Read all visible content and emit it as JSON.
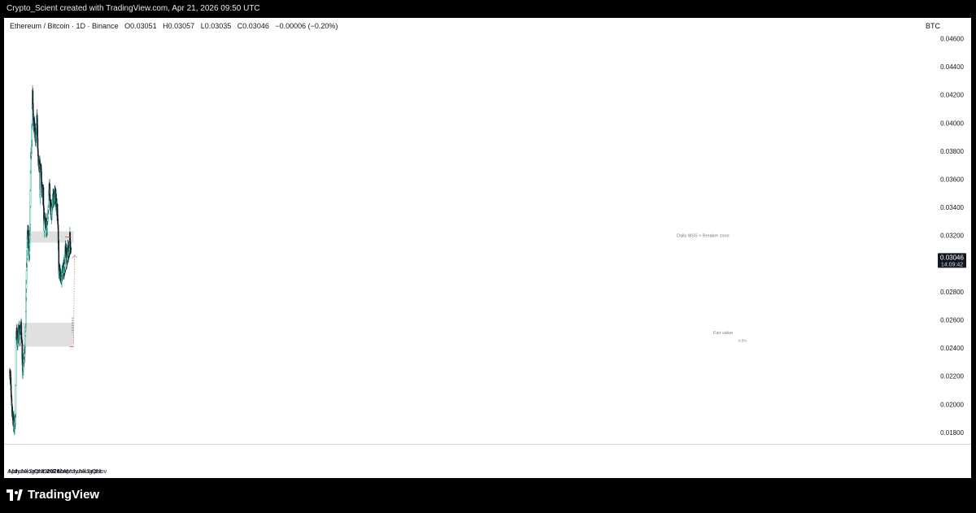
{
  "header": {
    "credit": "Crypto_Scient created with TradingView.com, Apr 21, 2026 09:50 UTC"
  },
  "legend": {
    "symbol": "Ethereum / Bitcoin · 1D · Binance",
    "open_label": "O",
    "open": "0.03051",
    "high_label": "H",
    "high": "0.03057",
    "low_label": "L",
    "low": "0.03035",
    "close_label": "C",
    "close": "0.03046",
    "change": "−0.00006 (−0.20%)"
  },
  "price_scale": {
    "currency": "BTC"
  },
  "last_price": {
    "value": "0.03046",
    "countdown": "14:09:42"
  },
  "brand": {
    "name": "TradingView"
  },
  "annotations": {
    "zone_top_label": "Daily MSS + Breaker zone",
    "zone_bottom_label": "Fair value",
    "zone_bottom_sub": "0.5%"
  },
  "colors": {
    "up": "#089981",
    "down": "#131722",
    "candle_body_up": "#ffffff",
    "zone": "#e0e0e0",
    "red_line": "#f23645",
    "last_price_bg": "#131722"
  },
  "chart_data": {
    "type": "candlestick",
    "title": "Ethereum / Bitcoin · 1D · Binance",
    "ylabel": "BTC",
    "ylim": [
      0.017,
      0.0472
    ],
    "y_ticks": [
      "0.04600",
      "0.04400",
      "0.04200",
      "0.04000",
      "0.03800",
      "0.03600",
      "0.03400",
      "0.03200",
      "0.03000",
      "0.02800",
      "0.02600",
      "0.02400",
      "0.02200",
      "0.02000",
      "0.01800"
    ],
    "x_ticks": [
      "Apr",
      "May",
      "Jun",
      "Jul",
      "Aug",
      "Sep",
      "Oct",
      "Nov",
      "Dec",
      "2026",
      "Feb",
      "Mar",
      "Apr",
      "May",
      "Jun",
      "Jul",
      "Aug",
      "Sep",
      "Oct",
      "Nov"
    ],
    "x_tick_dates": [
      "2025-04-01",
      "2025-05-01",
      "2025-06-01",
      "2025-07-01",
      "2025-08-01",
      "2025-09-01",
      "2025-10-01",
      "2025-11-01",
      "2025-12-01",
      "2026-01-01",
      "2026-02-01",
      "2026-03-01",
      "2026-04-01",
      "2026-05-01",
      "2026-06-01",
      "2026-07-01",
      "2026-08-01",
      "2026-09-01",
      "2026-10-01",
      "2026-11-01"
    ],
    "path_keypoints": [
      [
        "2025-04-01",
        0.0223
      ],
      [
        "2025-04-08",
        0.0218
      ],
      [
        "2025-04-12",
        0.02
      ],
      [
        "2025-04-20",
        0.019
      ],
      [
        "2025-04-26",
        0.0186
      ],
      [
        "2025-05-04",
        0.0188
      ],
      [
        "2025-05-08",
        0.019
      ],
      [
        "2025-05-10",
        0.0245
      ],
      [
        "2025-05-14",
        0.0255
      ],
      [
        "2025-05-20",
        0.0244
      ],
      [
        "2025-05-28",
        0.0253
      ],
      [
        "2025-06-05",
        0.0247
      ],
      [
        "2025-06-10",
        0.0256
      ],
      [
        "2025-06-16",
        0.0247
      ],
      [
        "2025-06-22",
        0.0223
      ],
      [
        "2025-06-28",
        0.0232
      ],
      [
        "2025-07-05",
        0.0238
      ],
      [
        "2025-07-10",
        0.0252
      ],
      [
        "2025-07-15",
        0.029
      ],
      [
        "2025-07-21",
        0.0318
      ],
      [
        "2025-07-28",
        0.032
      ],
      [
        "2025-08-02",
        0.0306
      ],
      [
        "2025-08-08",
        0.033
      ],
      [
        "2025-08-12",
        0.0375
      ],
      [
        "2025-08-18",
        0.0386
      ],
      [
        "2025-08-23",
        0.0426
      ],
      [
        "2025-08-28",
        0.0405
      ],
      [
        "2025-09-05",
        0.0395
      ],
      [
        "2025-09-13",
        0.0388
      ],
      [
        "2025-09-20",
        0.0405
      ],
      [
        "2025-09-25",
        0.0385
      ],
      [
        "2025-10-03",
        0.0366
      ],
      [
        "2025-10-08",
        0.0372
      ],
      [
        "2025-10-11",
        0.0345
      ],
      [
        "2025-10-14",
        0.0368
      ],
      [
        "2025-10-22",
        0.0353
      ],
      [
        "2025-10-30",
        0.035
      ],
      [
        "2025-11-04",
        0.0326
      ],
      [
        "2025-11-10",
        0.0332
      ],
      [
        "2025-11-20",
        0.0325
      ],
      [
        "2025-11-28",
        0.0333
      ],
      [
        "2025-12-04",
        0.0348
      ],
      [
        "2025-12-08",
        0.0355
      ],
      [
        "2025-12-14",
        0.0342
      ],
      [
        "2025-12-20",
        0.0335
      ],
      [
        "2025-12-28",
        0.0345
      ],
      [
        "2026-01-06",
        0.0347
      ],
      [
        "2026-01-14",
        0.035
      ],
      [
        "2026-01-22",
        0.034
      ],
      [
        "2026-01-28",
        0.0338
      ],
      [
        "2026-02-02",
        0.0318
      ],
      [
        "2026-02-06",
        0.0295
      ],
      [
        "2026-02-14",
        0.0292
      ],
      [
        "2026-02-22",
        0.029
      ],
      [
        "2026-02-28",
        0.0292
      ],
      [
        "2026-03-04",
        0.03
      ],
      [
        "2026-03-10",
        0.0296
      ],
      [
        "2026-03-16",
        0.0305
      ],
      [
        "2026-03-20",
        0.0312
      ],
      [
        "2026-03-26",
        0.0302
      ],
      [
        "2026-04-01",
        0.0308
      ],
      [
        "2026-04-06",
        0.031
      ],
      [
        "2026-04-13",
        0.0312
      ],
      [
        "2026-04-16",
        0.0318
      ],
      [
        "2026-04-19",
        0.031
      ],
      [
        "2026-04-21",
        0.03046
      ]
    ],
    "zones": [
      {
        "name": "Daily MSS + Breaker zone",
        "from_date": "2025-07-25",
        "to_date": "2026-05-10",
        "y_low": 0.0315,
        "y_high": 0.0323
      },
      {
        "name": "Fair value",
        "from_date": "2025-05-10",
        "to_date": "2026-05-10",
        "y_low": 0.0241,
        "y_high": 0.0258
      }
    ],
    "lines": [
      {
        "name": "trendline",
        "from": [
          "2026-03-07",
          0.02895
        ],
        "to": [
          "2026-04-26",
          0.0311
        ],
        "color": "#131722"
      },
      {
        "name": "range-high",
        "from": [
          "2026-03-17",
          0.0319
        ],
        "to": [
          "2026-04-20",
          0.0319
        ],
        "color": "#f23645"
      },
      {
        "name": "fair-value-low",
        "from": [
          "2026-04-15",
          0.0241
        ],
        "to": [
          "2026-05-10",
          0.0241
        ],
        "color": "#f23645"
      }
    ],
    "projection": [
      [
        "2026-04-28",
        0.0262
      ],
      [
        "2026-05-01",
        0.0251
      ],
      [
        "2026-05-05",
        0.0262
      ],
      [
        "2026-05-09",
        0.0243
      ],
      [
        "2026-05-15",
        0.0306
      ]
    ]
  }
}
